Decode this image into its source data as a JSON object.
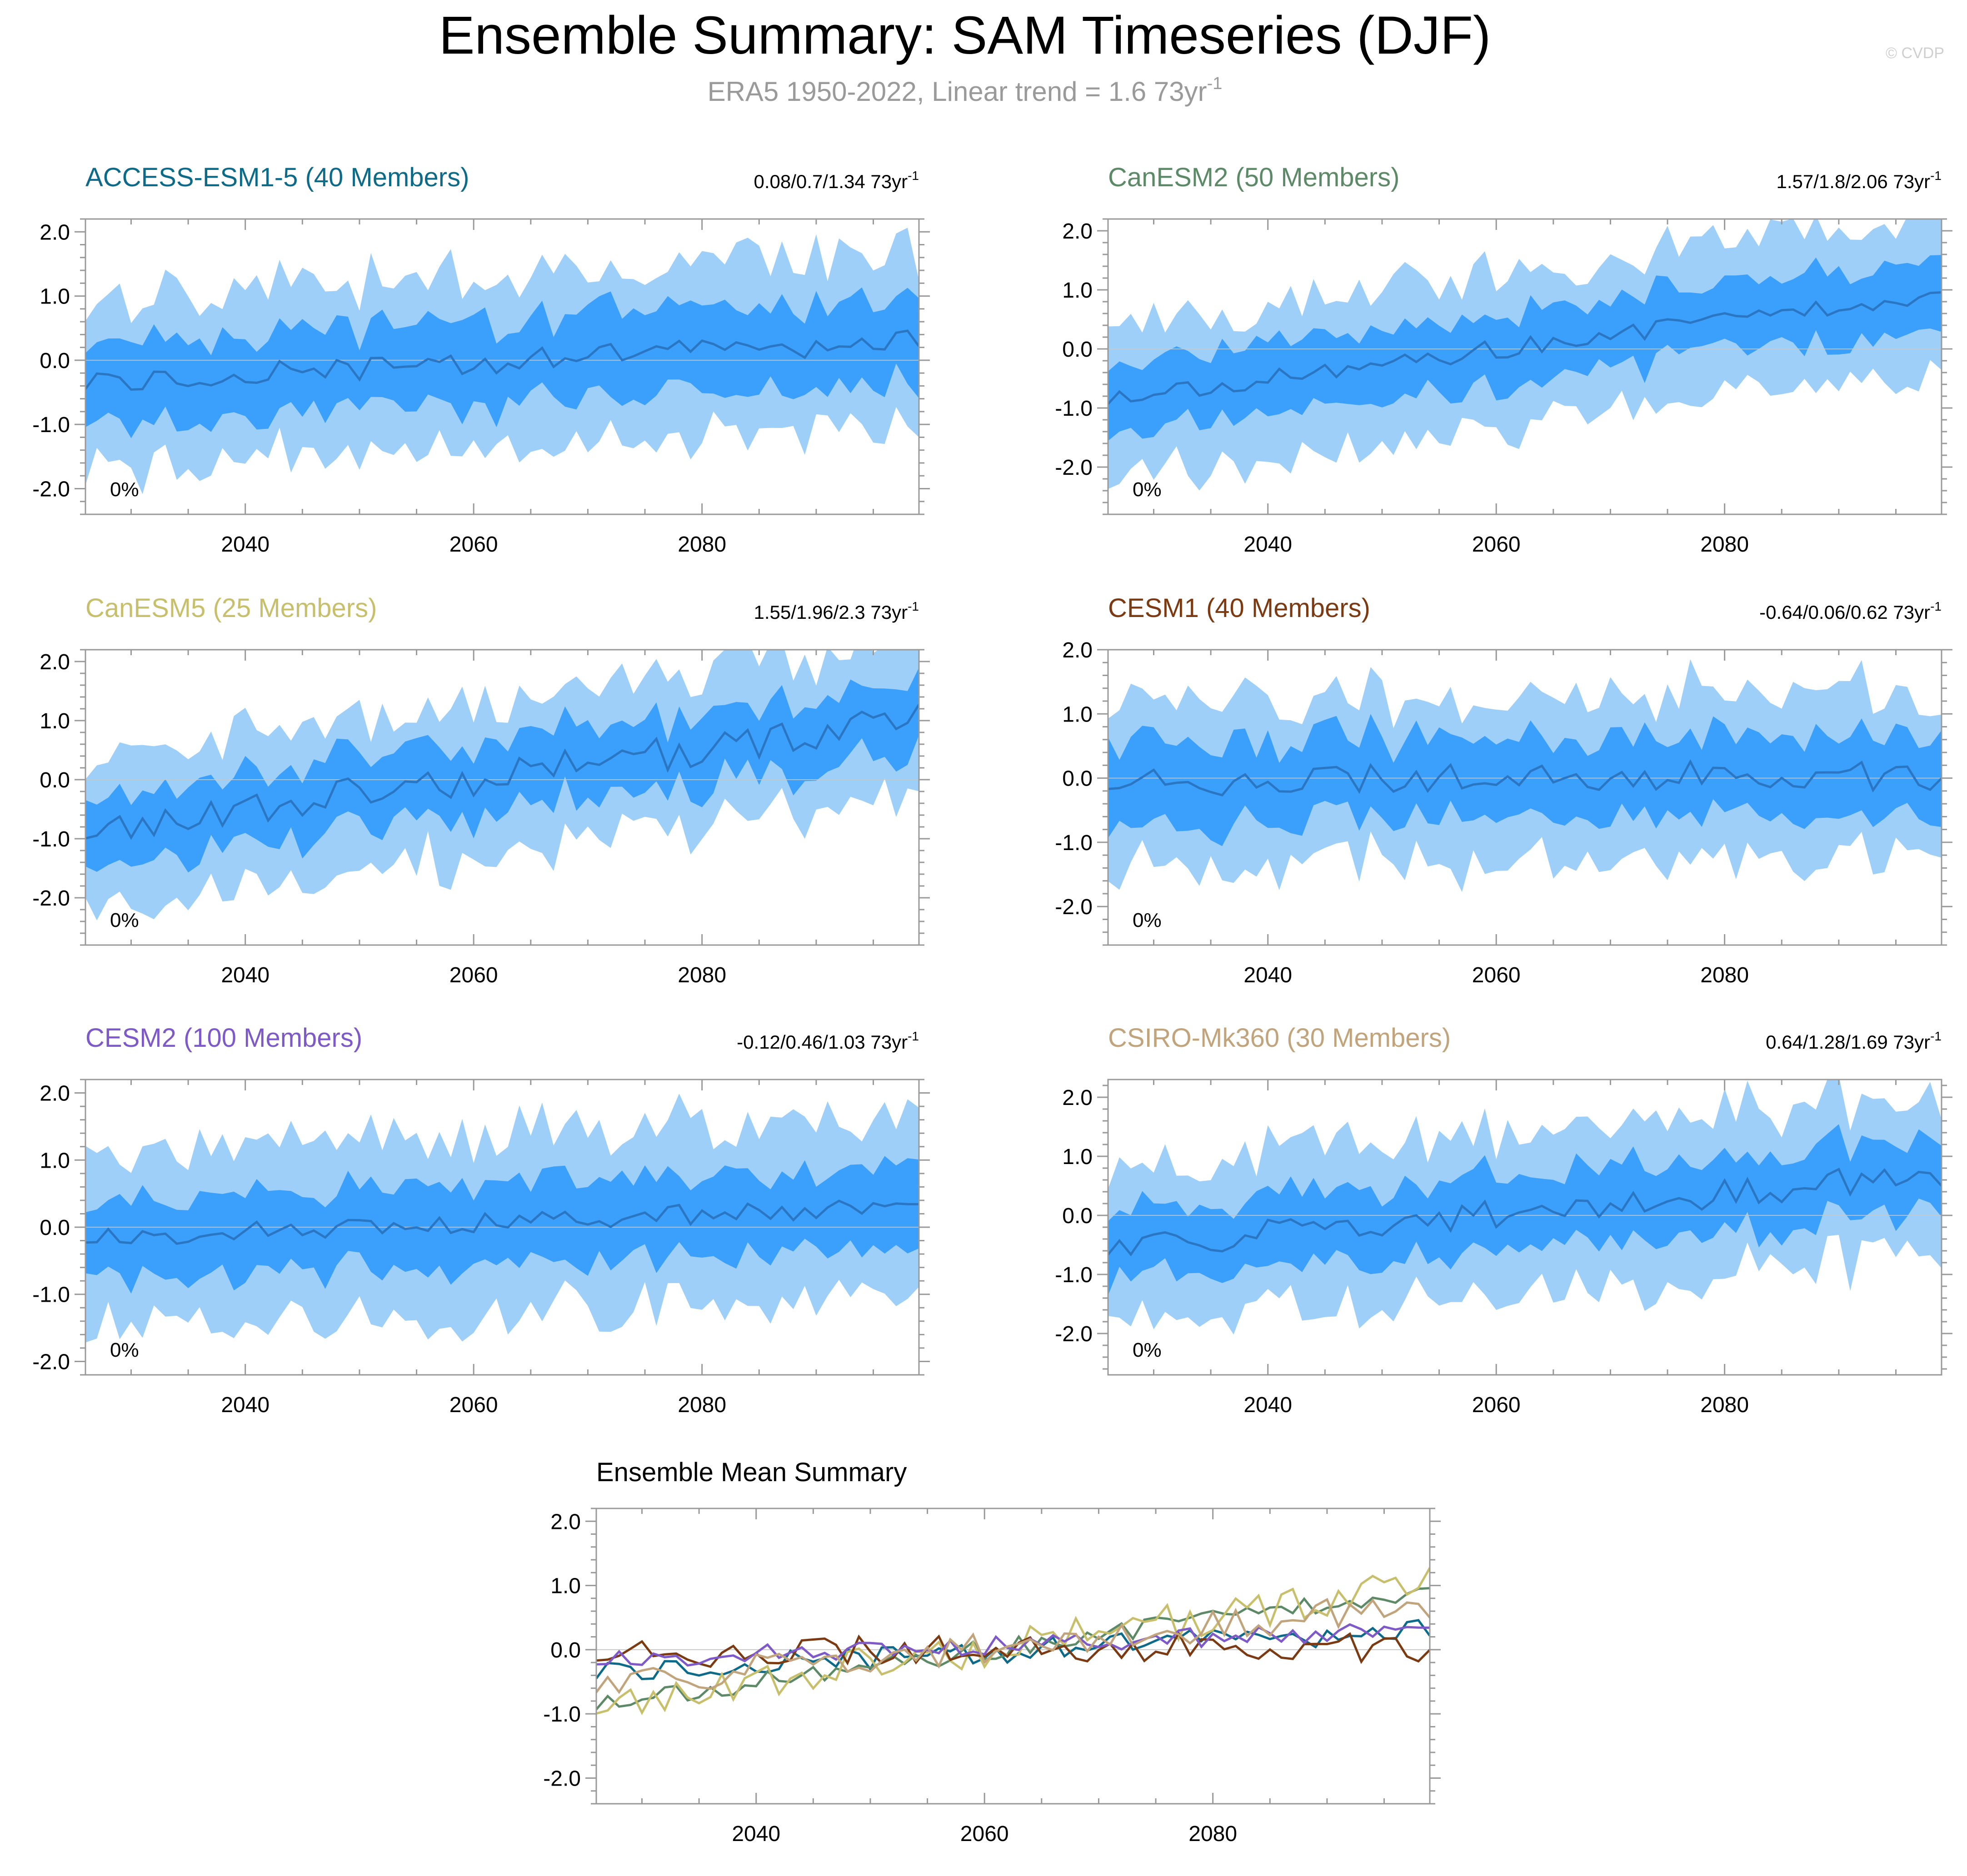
{
  "header": {
    "title": "Ensemble Summary: SAM Timeseries (DJF)",
    "subtitle_main": "ERA5 1950-2022, Linear trend = 1.6 73yr",
    "subtitle_sup": "-1",
    "watermark": "© CVDP"
  },
  "colors": {
    "band_outer": "#9ecff9",
    "band_inner": "#3aa0fb",
    "mean_line": "#2a76c2",
    "zero_line": "#c8c8c8",
    "axis": "#999999",
    "tick_text": "#000000"
  },
  "chart_data": [
    {
      "type": "area",
      "title": "ACCESS-ESM1-5 (40 Members)",
      "title_color": "#0d6a88",
      "trend_label": "0.08/0.7/1.34 73yr",
      "trend_sup": "-1",
      "pct_label": "0%",
      "xlim": [
        2026,
        2099
      ],
      "ylim": [
        -2.4,
        2.2
      ],
      "xticks": [
        2040,
        2060,
        2080
      ],
      "xtick_labels": [
        "2040",
        "2060",
        "2080"
      ],
      "yticks": [
        2,
        1,
        0,
        -1,
        -2
      ],
      "ytick_labels": [
        "2.0",
        "1.0",
        "0.0",
        "-1.0",
        "-2.0"
      ],
      "trend_start": -0.35,
      "trend_end": 0.3,
      "amp": 0.12,
      "outer_spread": 1.35,
      "inner_spread": 0.65,
      "seed": 11
    },
    {
      "type": "area",
      "title": "CanESM2 (50 Members)",
      "title_color": "#5d8a66",
      "trend_label": "1.57/1.8/2.06 73yr",
      "trend_sup": "-1",
      "pct_label": "0%",
      "xlim": [
        2026,
        2099
      ],
      "ylim": [
        -2.8,
        2.2
      ],
      "xticks": [
        2040,
        2060,
        2080
      ],
      "xtick_labels": [
        "2040",
        "2060",
        "2080"
      ],
      "yticks": [
        2,
        1,
        0,
        -1,
        -2
      ],
      "ytick_labels": [
        "2.0",
        "1.0",
        "0.0",
        "-1.0",
        "-2.0"
      ],
      "trend_start": -0.85,
      "trend_end": 0.95,
      "amp": 0.1,
      "outer_spread": 1.3,
      "inner_spread": 0.6,
      "seed": 23
    },
    {
      "type": "area",
      "title": "CanESM5 (25 Members)",
      "title_color": "#c8bf6c",
      "trend_label": "1.55/1.96/2.3 73yr",
      "trend_sup": "-1",
      "pct_label": "0%",
      "xlim": [
        2026,
        2099
      ],
      "ylim": [
        -2.8,
        2.2
      ],
      "xticks": [
        2040,
        2060,
        2080
      ],
      "xtick_labels": [
        "2040",
        "2060",
        "2080"
      ],
      "yticks": [
        2,
        1,
        0,
        -1,
        -2
      ],
      "ytick_labels": [
        "2.0",
        "1.0",
        "0.0",
        "-1.0",
        "-2.0"
      ],
      "trend_start": -0.85,
      "trend_end": 1.0,
      "amp": 0.18,
      "outer_spread": 1.3,
      "inner_spread": 0.6,
      "seed": 37
    },
    {
      "type": "area",
      "title": "CESM1 (40 Members)",
      "title_color": "#7b3a12",
      "trend_label": "-0.64/0.06/0.62 73yr",
      "trend_sup": "-1",
      "pct_label": "0%",
      "xlim": [
        2026,
        2099
      ],
      "ylim": [
        -2.6,
        2.0
      ],
      "xticks": [
        2040,
        2060,
        2080
      ],
      "xtick_labels": [
        "2040",
        "2060",
        "2080"
      ],
      "yticks": [
        2,
        1,
        0,
        -1,
        -2
      ],
      "ytick_labels": [
        "2.0",
        "1.0",
        "0.0",
        "-1.0",
        "-2.0"
      ],
      "trend_start": -0.05,
      "trend_end": 0.05,
      "amp": 0.15,
      "outer_spread": 1.3,
      "inner_spread": 0.62,
      "seed": 41
    },
    {
      "type": "area",
      "title": "CESM2 (100 Members)",
      "title_color": "#7e59c8",
      "trend_label": "-0.12/0.46/1.03 73yr",
      "trend_sup": "-1",
      "pct_label": "0%",
      "xlim": [
        2026,
        2099
      ],
      "ylim": [
        -2.2,
        2.2
      ],
      "xticks": [
        2040,
        2060,
        2080
      ],
      "xtick_labels": [
        "2040",
        "2060",
        "2080"
      ],
      "yticks": [
        2,
        1,
        0,
        -1,
        -2
      ],
      "ytick_labels": [
        "2.0",
        "1.0",
        "0.0",
        "-1.0",
        "-2.0"
      ],
      "trend_start": -0.15,
      "trend_end": 0.3,
      "amp": 0.1,
      "outer_spread": 1.35,
      "inner_spread": 0.6,
      "seed": 53
    },
    {
      "type": "area",
      "title": "CSIRO-Mk360 (30 Members)",
      "title_color": "#c2a47c",
      "trend_label": "0.64/1.28/1.69 73yr",
      "trend_sup": "-1",
      "pct_label": "0%",
      "xlim": [
        2026,
        2099
      ],
      "ylim": [
        -2.7,
        2.3
      ],
      "xticks": [
        2040,
        2060,
        2080
      ],
      "xtick_labels": [
        "2040",
        "2060",
        "2080"
      ],
      "yticks": [
        2,
        1,
        0,
        -1,
        -2
      ],
      "ytick_labels": [
        "2.0",
        "1.0",
        "0.0",
        "-1.0",
        "-2.0"
      ],
      "trend_start": -0.55,
      "trend_end": 0.7,
      "amp": 0.15,
      "outer_spread": 1.35,
      "inner_spread": 0.62,
      "seed": 67
    },
    {
      "type": "line",
      "title": "Ensemble Mean Summary",
      "title_color": "#000000",
      "xlim": [
        2026,
        2099
      ],
      "ylim": [
        -2.4,
        2.2
      ],
      "xticks": [
        2040,
        2060,
        2080
      ],
      "xtick_labels": [
        "2040",
        "2060",
        "2080"
      ],
      "yticks": [
        2,
        1,
        0,
        -1,
        -2
      ],
      "ytick_labels": [
        "2.0",
        "1.0",
        "0.0",
        "-1.0",
        "-2.0"
      ],
      "series": [
        {
          "name": "ACCESS-ESM1-5",
          "color": "#0d6a88",
          "ref": 0
        },
        {
          "name": "CanESM2",
          "color": "#5d8a66",
          "ref": 1
        },
        {
          "name": "CanESM5",
          "color": "#c8bf6c",
          "ref": 2
        },
        {
          "name": "CESM1",
          "color": "#7b3a12",
          "ref": 3
        },
        {
          "name": "CESM2",
          "color": "#7e59c8",
          "ref": 4
        },
        {
          "name": "CSIRO-Mk360",
          "color": "#c2a47c",
          "ref": 5
        }
      ]
    }
  ]
}
